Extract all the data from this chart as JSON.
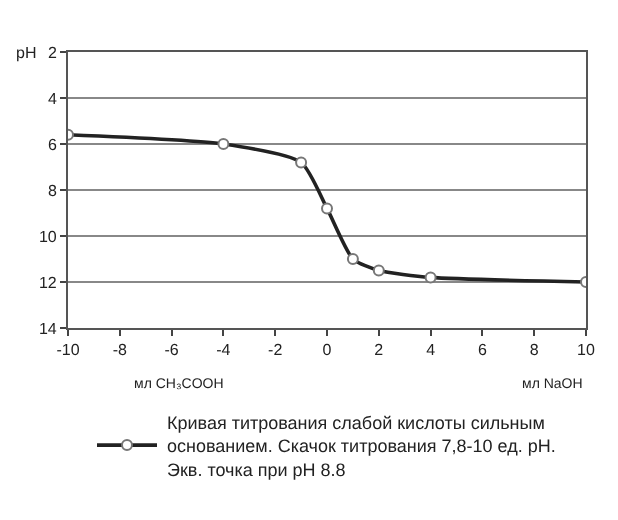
{
  "chart_data": {
    "type": "line",
    "ylabel": "pH",
    "x": [
      -10,
      -4,
      -1,
      0,
      1,
      2,
      4,
      10
    ],
    "series": [
      {
        "name": "Кривая титрования слабой кислоты сильным основанием. Скачок титрования 7,8-10 ед. pH. Экв. точка при pH 8.8",
        "color": "#222222",
        "values": [
          5.6,
          6.0,
          6.8,
          8.8,
          11.0,
          11.5,
          11.8,
          12.0
        ]
      }
    ],
    "xlim": [
      -10,
      10
    ],
    "xticks": [
      -10,
      -8,
      -6,
      -4,
      -2,
      0,
      2,
      4,
      6,
      8,
      10
    ],
    "ylim": [
      14,
      2
    ],
    "yticks": [
      2,
      4,
      6,
      8,
      10,
      12,
      14
    ],
    "annotations": [
      "мл CH₃COOH",
      "мл NaOH"
    ],
    "grid": "y",
    "legend": "bottom",
    "marker": "circle",
    "line_style": "solid"
  }
}
